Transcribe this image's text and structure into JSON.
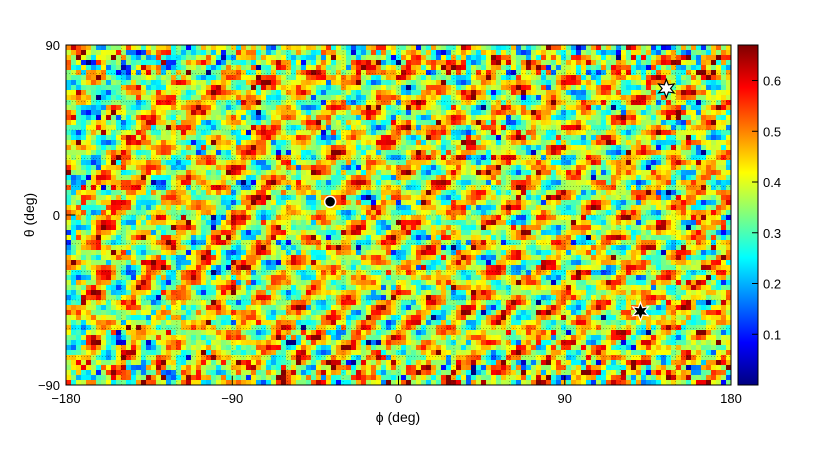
{
  "chart_data": {
    "type": "heatmap",
    "title": "",
    "xlabel": "ϕ (deg)",
    "ylabel": "θ (deg)",
    "xlim": [
      -180,
      180
    ],
    "ylim": [
      -90,
      90
    ],
    "x_ticks": [
      -180,
      -90,
      0,
      90,
      180
    ],
    "x_tick_labels": [
      "−180",
      "−90",
      "0",
      "90",
      "180"
    ],
    "y_ticks": [
      -90,
      0,
      90
    ],
    "y_tick_labels": [
      "−90",
      "0",
      "90"
    ],
    "colorbar": {
      "range": [
        0.0,
        0.67
      ],
      "ticks": [
        0.1,
        0.2,
        0.3,
        0.4,
        0.5,
        0.6
      ],
      "tick_labels": [
        "0.1",
        "0.2",
        "0.3",
        "0.4",
        "0.5",
        "0.6"
      ],
      "colormap": "jet",
      "position": "right"
    },
    "grid": true,
    "colors": {
      "jet_stops": [
        "#00007f",
        "#0000ff",
        "#007fff",
        "#00ffff",
        "#7fff7f",
        "#ffff00",
        "#ff7f00",
        "#ff0000",
        "#7f0000"
      ],
      "background": "#ffffff",
      "frame": "#000000"
    },
    "markers": [
      {
        "name": "black-dot",
        "phi": -37,
        "theta": 7,
        "shape": "circle",
        "color": "#000000",
        "outline": "#ffffff"
      },
      {
        "name": "white-star",
        "phi": 145,
        "theta": 67,
        "shape": "star",
        "color": "#ffffff",
        "outline": "#000000"
      },
      {
        "name": "black-star",
        "phi": 131,
        "theta": -51,
        "shape": "star",
        "color": "#000000",
        "outline": "#ffffff"
      }
    ]
  }
}
